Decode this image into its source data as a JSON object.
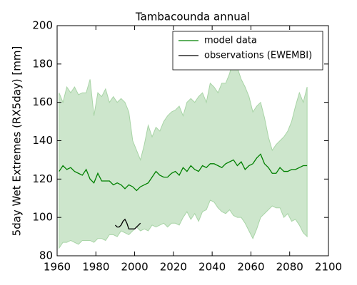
{
  "chart_data": {
    "type": "line",
    "title": "Tambacounda annual",
    "ylabel": "5day Wet Extremes (RX5day) [mm]",
    "xlim": [
      1960,
      2100
    ],
    "xticks": [
      1960,
      1980,
      2000,
      2020,
      2040,
      2060,
      2080,
      2100
    ],
    "ylim": [
      80,
      200
    ],
    "yticks": [
      80,
      100,
      120,
      140,
      160,
      180,
      200
    ],
    "legend": "upper right",
    "band": {
      "color": "#cde6cc",
      "edge": "#a8d4a6",
      "x": [
        1961,
        1963,
        1965,
        1967,
        1969,
        1971,
        1973,
        1975,
        1977,
        1979,
        1981,
        1983,
        1985,
        1987,
        1989,
        1991,
        1993,
        1995,
        1997,
        1999,
        2001,
        2003,
        2005,
        2007,
        2009,
        2011,
        2013,
        2015,
        2017,
        2019,
        2021,
        2023,
        2025,
        2027,
        2029,
        2031,
        2033,
        2035,
        2037,
        2039,
        2041,
        2043,
        2045,
        2047,
        2049,
        2051,
        2053,
        2055,
        2057,
        2059,
        2061,
        2063,
        2065,
        2067,
        2069,
        2071,
        2073,
        2075,
        2077,
        2079,
        2081,
        2083,
        2085,
        2087,
        2089
      ],
      "upper": [
        165,
        160,
        168,
        165,
        168,
        164,
        165,
        165,
        172,
        153,
        165,
        163,
        167,
        160,
        163,
        160,
        162,
        160,
        155,
        140,
        135,
        130,
        138,
        148,
        142,
        147,
        145,
        150,
        153,
        155,
        156,
        158,
        153,
        160,
        162,
        160,
        163,
        165,
        160,
        170,
        168,
        165,
        170,
        170,
        175,
        183,
        178,
        172,
        168,
        163,
        155,
        158,
        160,
        152,
        142,
        135,
        138,
        140,
        142,
        145,
        150,
        158,
        165,
        160,
        168
      ],
      "lower": [
        84,
        87,
        87,
        88,
        87,
        86,
        88,
        88,
        88,
        87,
        89,
        89,
        88,
        91,
        91,
        90,
        93,
        92,
        91,
        93,
        95,
        93,
        94,
        93,
        96,
        95,
        96,
        97,
        95,
        97,
        97,
        96,
        100,
        103,
        99,
        102,
        98,
        103,
        104,
        109,
        108,
        105,
        103,
        102,
        104,
        101,
        100,
        100,
        97,
        93,
        89,
        94,
        100,
        102,
        104,
        106,
        105,
        105,
        100,
        102,
        98,
        99,
        96,
        92,
        90
      ]
    },
    "series": [
      {
        "name": "model data",
        "color": "#008000",
        "x": [
          1961,
          1963,
          1965,
          1967,
          1969,
          1971,
          1973,
          1975,
          1977,
          1979,
          1981,
          1983,
          1985,
          1987,
          1989,
          1991,
          1993,
          1995,
          1997,
          1999,
          2001,
          2003,
          2005,
          2007,
          2009,
          2011,
          2013,
          2015,
          2017,
          2019,
          2021,
          2023,
          2025,
          2027,
          2029,
          2031,
          2033,
          2035,
          2037,
          2039,
          2041,
          2043,
          2045,
          2047,
          2049,
          2051,
          2053,
          2055,
          2057,
          2059,
          2061,
          2063,
          2065,
          2067,
          2069,
          2071,
          2073,
          2075,
          2077,
          2079,
          2081,
          2083,
          2085,
          2087,
          2089
        ],
        "values": [
          124,
          127,
          125,
          126,
          124,
          123,
          122,
          125,
          120,
          118,
          123,
          119,
          119,
          119,
          117,
          118,
          117,
          115,
          117,
          116,
          114,
          116,
          117,
          118,
          121,
          124,
          122,
          121,
          121,
          123,
          124,
          122,
          126,
          124,
          127,
          125,
          124,
          127,
          126,
          128,
          128,
          127,
          126,
          128,
          129,
          130,
          127,
          129,
          125,
          127,
          128,
          131,
          133,
          128,
          126,
          123,
          123,
          126,
          124,
          124,
          125,
          125,
          126,
          127,
          127
        ]
      },
      {
        "name": "observations (EWEMBI)",
        "color": "#000000",
        "x": [
          1990,
          1991,
          1992,
          1993,
          1994,
          1995,
          1996,
          1997,
          1998,
          1999,
          2000,
          2001,
          2002,
          2003
        ],
        "values": [
          96,
          95,
          95,
          96,
          98,
          99,
          97,
          94,
          94,
          94,
          94,
          95,
          96,
          97
        ]
      }
    ]
  }
}
